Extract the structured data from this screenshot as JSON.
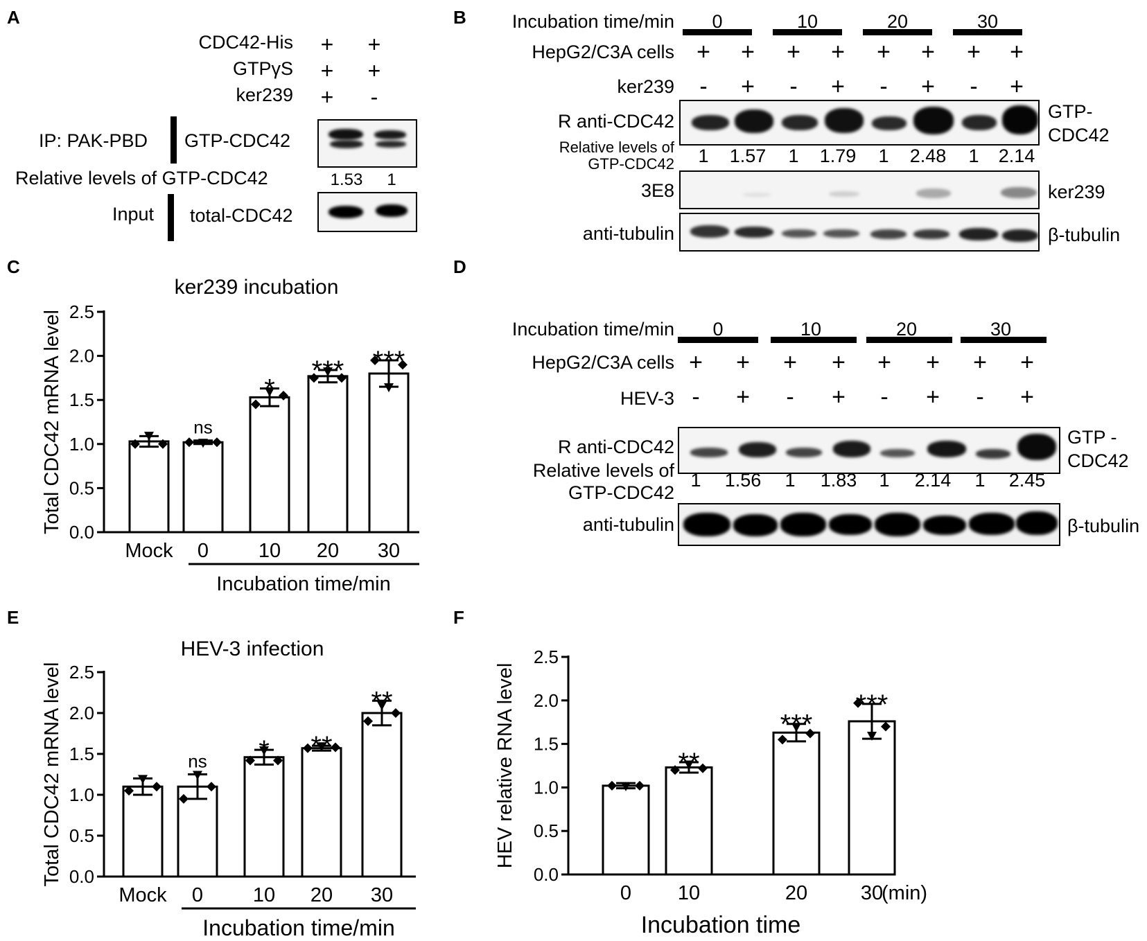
{
  "panelA": {
    "label": "A",
    "rows": [
      {
        "name": "CDC42-His",
        "lanes": [
          "+",
          "+"
        ]
      },
      {
        "name": "GTPγS",
        "lanes": [
          "+",
          "+"
        ]
      },
      {
        "name": "ker239",
        "lanes": [
          "+",
          "-"
        ]
      }
    ],
    "ip_label": "IP: PAK-PBD",
    "gtp_label": "GTP-CDC42",
    "relative_label": "Relative levels of GTP-CDC42",
    "relative_values": [
      "1.53",
      "1"
    ],
    "input_label": "Input",
    "total_label": "total-CDC42"
  },
  "panelB": {
    "label": "B",
    "time_label": "Incubation time/min",
    "times": [
      "0",
      "10",
      "20",
      "30"
    ],
    "cells_label": "HepG2/C3A cells",
    "cells_lanes": [
      "+",
      "+",
      "+",
      "+",
      "+",
      "+",
      "+",
      "+"
    ],
    "treat_label": "ker239",
    "treat_lanes": [
      "-",
      "+",
      "-",
      "+",
      "-",
      "+",
      "-",
      "+"
    ],
    "antibody_label": "R anti-CDC42",
    "right_label_1": "GTP-",
    "right_label_2": "CDC42",
    "relative_label_1": "Relative levels of",
    "relative_label_2": "GTP-CDC42",
    "relative_values": [
      "1",
      "1.57",
      "1",
      "1.79",
      "1",
      "2.48",
      "1",
      "2.14"
    ],
    "blot2_left": "3E8",
    "blot2_right": "ker239",
    "blot3_left": "anti-tubulin",
    "blot3_right": "β-tubulin"
  },
  "panelD": {
    "label": "D",
    "time_label": "Incubation time/min",
    "times": [
      "0",
      "10",
      "20",
      "30"
    ],
    "cells_label": "HepG2/C3A cells",
    "cells_lanes": [
      "+",
      "+",
      "+",
      "+",
      "+",
      "+",
      "+",
      "+"
    ],
    "treat_label": "HEV-3",
    "treat_lanes": [
      "-",
      "+",
      "-",
      "+",
      "-",
      "+",
      "-",
      "+"
    ],
    "antibody_label": "R anti-CDC42",
    "right_label_1": "GTP -",
    "right_label_2": "CDC42",
    "relative_label_1": "Relative levels of",
    "relative_label_2": "GTP-CDC42",
    "relative_values": [
      "1",
      "1.56",
      "1",
      "1.83",
      "1",
      "2.14",
      "1",
      "2.45"
    ],
    "blot3_left": "anti-tubulin",
    "blot3_right": "β-tubulin"
  },
  "chart_data": [
    {
      "panel": "C",
      "type": "bar",
      "title": "ker239 incubation",
      "ylabel": "Total CDC42 mRNA level",
      "xlabel": "Incubation time/min",
      "categories": [
        "Mock",
        "0",
        "10",
        "20",
        "30"
      ],
      "values": [
        1.03,
        1.02,
        1.53,
        1.77,
        1.8
      ],
      "errors": [
        0.06,
        0.02,
        0.1,
        0.07,
        0.15
      ],
      "points": [
        [
          1.0,
          1.1,
          1.0
        ],
        [
          1.02,
          1.02,
          1.02
        ],
        [
          1.45,
          1.6,
          1.55
        ],
        [
          1.75,
          1.83,
          1.75
        ],
        [
          1.95,
          1.65,
          1.9
        ]
      ],
      "significance": [
        "",
        "ns",
        "*",
        "***",
        "***"
      ],
      "ylim": [
        0,
        2.5
      ],
      "yticks": [
        "0.0",
        "0.5",
        "1.0",
        "1.5",
        "2.0",
        "2.5"
      ]
    },
    {
      "panel": "E",
      "type": "bar",
      "title": "HEV-3  infection",
      "ylabel": "Total CDC42 mRNA level",
      "xlabel": "Incubation time/min",
      "categories": [
        "Mock",
        "0",
        "10",
        "20",
        "30"
      ],
      "values": [
        1.1,
        1.1,
        1.46,
        1.57,
        2.0
      ],
      "errors": [
        0.1,
        0.15,
        0.09,
        0.03,
        0.15
      ],
      "points": [
        [
          1.05,
          1.2,
          1.1
        ],
        [
          0.95,
          1.25,
          1.1
        ],
        [
          1.42,
          1.55,
          1.42
        ],
        [
          1.57,
          1.6,
          1.58
        ],
        [
          1.9,
          2.1,
          2.0
        ]
      ],
      "significance": [
        "",
        "ns",
        "*",
        "**",
        "**"
      ],
      "ylim": [
        0,
        2.5
      ],
      "yticks": [
        "0.0",
        "0.5",
        "1.0",
        "1.5",
        "2.0",
        "2.5"
      ]
    },
    {
      "panel": "F",
      "type": "bar",
      "ylabel": "HEV relative RNA level",
      "xlabel": "Incubation time",
      "unit": "(min)",
      "categories": [
        "0",
        "10",
        "20",
        "30"
      ],
      "values": [
        1.02,
        1.23,
        1.63,
        1.76
      ],
      "errors": [
        0.03,
        0.06,
        0.1,
        0.2
      ],
      "points": [
        [
          1.02,
          1.02,
          1.02
        ],
        [
          1.2,
          1.27,
          1.22
        ],
        [
          1.55,
          1.7,
          1.62
        ],
        [
          1.97,
          1.6,
          1.7
        ]
      ],
      "significance": [
        "",
        "**",
        "***",
        "***"
      ],
      "ylim": [
        0,
        2.5
      ],
      "yticks": [
        "0.0",
        "0.5",
        "1.0",
        "1.5",
        "2.0",
        "2.5"
      ]
    }
  ],
  "panel_labels": {
    "C": "C",
    "E": "E",
    "F": "F"
  }
}
